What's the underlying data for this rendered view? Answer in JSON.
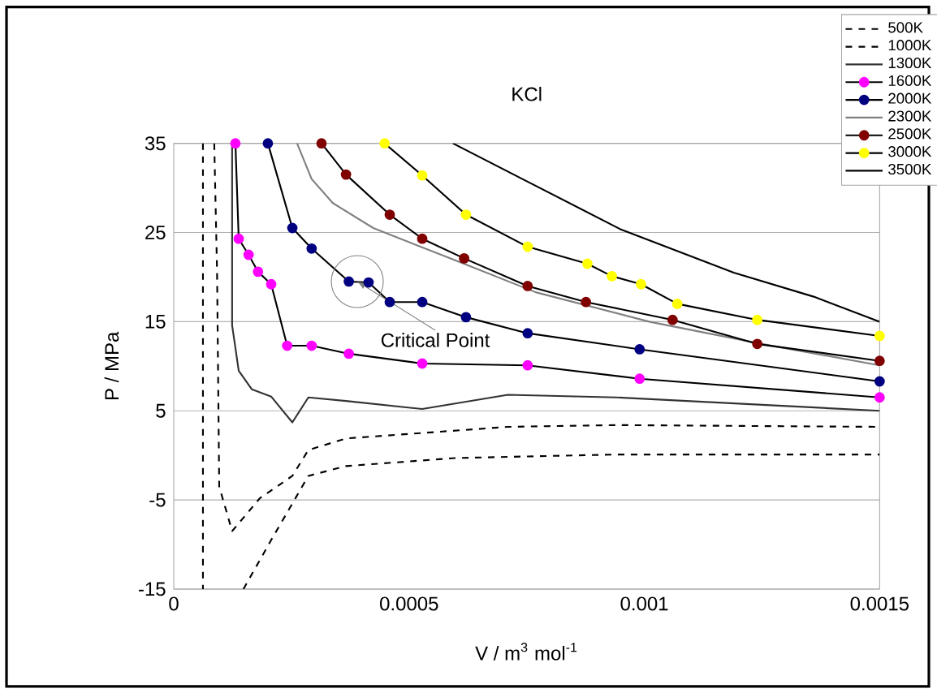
{
  "chart_data": {
    "type": "line",
    "title": "KCl",
    "xlabel": "V / m$^{3}$ mol$^{-1}$",
    "ylabel": "P / MPa",
    "xlim": [
      0,
      0.0015
    ],
    "ylim": [
      -15,
      35
    ],
    "xticks": [
      0,
      0.0005,
      0.001,
      0.0015
    ],
    "yticks": [
      -15,
      -5,
      5,
      15,
      25,
      35
    ],
    "grid": "y",
    "legend": "top right",
    "annotations": [
      {
        "text": "Critical Point",
        "x": 0.00039,
        "y": 19.5
      }
    ],
    "series": [
      {
        "name": "500K",
        "color": "#000000",
        "marker": "none",
        "line_style": "dashed",
        "x": [
          6.2e-05,
          6.2e-05,
          0.0001,
          0.000148,
          0.000207,
          0.000252,
          0.000286,
          0.000366,
          0.000597,
          0.000941,
          0.0015
        ],
        "values": [
          35,
          -15,
          null,
          -15,
          -9.5,
          -5.4,
          -2.3,
          -1.2,
          -0.3,
          0.1,
          0.1
        ]
      },
      {
        "name": "1000K",
        "color": "#000000",
        "marker": "none",
        "line_style": "dashed",
        "x": [
          8.6e-05,
          9.2e-05,
          9.66e-05,
          0.000124,
          0.000183,
          0.000252,
          0.000286,
          0.000366,
          0.00071,
          0.000941,
          0.0015
        ],
        "values": [
          35,
          20.6,
          -3.5,
          -8.5,
          -4.8,
          -2.3,
          0.6,
          1.9,
          3.2,
          3.4,
          3.2
        ]
      },
      {
        "name": "1300K",
        "color": "#333333",
        "marker": "none",
        "line_style": "solid",
        "x": [
          0.000124,
          0.000124,
          0.000138,
          0.000166,
          0.000207,
          0.000252,
          0.000286,
          0.000366,
          0.000528,
          0.00071,
          0.000941,
          0.0015
        ],
        "values": [
          35,
          14.6,
          9.5,
          7.4,
          6.6,
          3.7,
          6.5,
          6.1,
          5.2,
          6.8,
          6.5,
          5.0
        ]
      },
      {
        "name": "1600K",
        "color": "#ff00ff",
        "marker": "circle",
        "line_style": "solid",
        "x": [
          0.000131,
          0.000138,
          0.000159,
          0.000179,
          0.000207,
          0.000241,
          0.000293,
          0.000372,
          0.000528,
          0.000752,
          0.00099,
          0.0015
        ],
        "values": [
          35,
          24.3,
          22.5,
          20.6,
          19.2,
          12.3,
          12.3,
          11.4,
          10.3,
          10.1,
          8.6,
          6.5
        ]
      },
      {
        "name": "2000K",
        "color": "#000080",
        "marker": "circle",
        "line_style": "solid",
        "x": [
          0.0002,
          0.000252,
          0.000293,
          0.000372,
          0.000414,
          0.000459,
          0.000528,
          0.000621,
          0.000752,
          0.00099,
          0.0015
        ],
        "values": [
          35,
          25.5,
          23.2,
          19.5,
          19.4,
          17.2,
          17.2,
          15.5,
          13.7,
          11.9,
          8.3
        ]
      },
      {
        "name": "2300K",
        "color": "#808080",
        "marker": "none",
        "line_style": "solid",
        "x": [
          0.000262,
          0.000293,
          0.000338,
          0.000424,
          0.000597,
          0.000769,
          0.00101,
          0.00125,
          0.0015
        ],
        "values": [
          35,
          31,
          28.3,
          25.5,
          21.9,
          18.3,
          15,
          12.5,
          10.1
        ]
      },
      {
        "name": "2500K",
        "color": "#800000",
        "marker": "circle",
        "line_style": "solid",
        "x": [
          0.000314,
          0.000366,
          0.000459,
          0.000528,
          0.000617,
          0.000752,
          0.000876,
          0.00106,
          0.00124,
          0.0015
        ],
        "values": [
          35,
          31.5,
          27.0,
          24.3,
          22.1,
          19.0,
          17.2,
          15.2,
          12.5,
          10.6
        ]
      },
      {
        "name": "3000K",
        "color": "#ffff00",
        "marker": "circle",
        "line_style": "solid",
        "x": [
          0.000448,
          0.000528,
          0.000621,
          0.000752,
          0.000879,
          0.000931,
          0.000993,
          0.00107,
          0.00124,
          0.0015
        ],
        "values": [
          35,
          31.4,
          27.0,
          23.4,
          21.5,
          20.1,
          19.2,
          17.0,
          15.2,
          13.4
        ]
      },
      {
        "name": "3500K",
        "color": "#000000",
        "marker": "none",
        "line_style": "solid",
        "x": [
          0.000593,
          0.000741,
          0.000948,
          0.00119,
          0.00136,
          0.0015
        ],
        "values": [
          35,
          31,
          25.4,
          20.5,
          17.8,
          15
        ]
      }
    ]
  }
}
